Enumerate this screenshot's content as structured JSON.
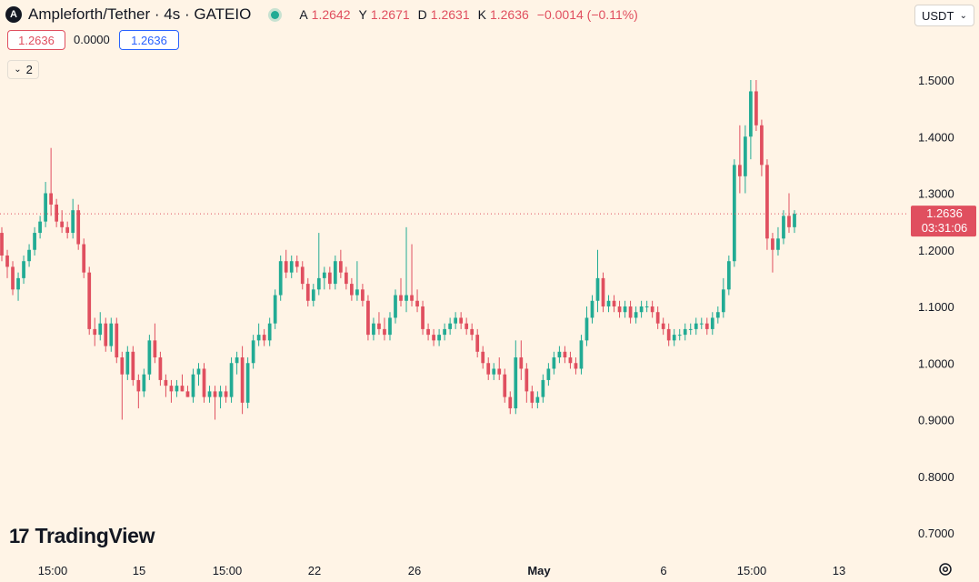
{
  "header": {
    "coin_letter": "A",
    "symbol": "Ampleforth/Tether · 4s · GATEIO",
    "ohlc": [
      {
        "key": "A",
        "value": "1.2642"
      },
      {
        "key": "Y",
        "value": "1.2671"
      },
      {
        "key": "D",
        "value": "1.2631"
      },
      {
        "key": "K",
        "value": "1.2636"
      }
    ],
    "change": "−0.0014 (−0.11%)",
    "currency": "USDT"
  },
  "quote": {
    "sell": "1.2636",
    "spread": "0.0000",
    "buy": "1.2636"
  },
  "collapse_count": "2",
  "branding": "TradingView",
  "colors": {
    "up": "#22ab94",
    "down": "#e04f5f",
    "background": "#fff4e6",
    "accent": "#2962ff"
  },
  "chart_data": {
    "type": "candlestick",
    "y_ticks": [
      "1.5000",
      "1.4000",
      "1.3000",
      "1.2000",
      "1.1000",
      "1.0000",
      "0.9000",
      "0.8000",
      "0.7000"
    ],
    "x_ticks": [
      "15:00",
      "15",
      "15:00",
      "22",
      "26",
      "May",
      "6",
      "15:00",
      "13"
    ],
    "ylim": [
      0.68,
      1.52
    ],
    "last_price": "1.2636",
    "countdown": "03:31:06",
    "candles": [
      [
        1.23,
        1.24,
        1.18,
        1.19
      ],
      [
        1.19,
        1.2,
        1.15,
        1.17
      ],
      [
        1.17,
        1.18,
        1.12,
        1.13
      ],
      [
        1.13,
        1.16,
        1.11,
        1.15
      ],
      [
        1.15,
        1.19,
        1.14,
        1.18
      ],
      [
        1.18,
        1.21,
        1.17,
        1.2
      ],
      [
        1.2,
        1.24,
        1.19,
        1.23
      ],
      [
        1.23,
        1.26,
        1.22,
        1.25
      ],
      [
        1.25,
        1.32,
        1.24,
        1.3
      ],
      [
        1.3,
        1.38,
        1.26,
        1.28
      ],
      [
        1.28,
        1.29,
        1.24,
        1.25
      ],
      [
        1.25,
        1.27,
        1.23,
        1.24
      ],
      [
        1.24,
        1.25,
        1.22,
        1.23
      ],
      [
        1.23,
        1.29,
        1.22,
        1.27
      ],
      [
        1.27,
        1.28,
        1.2,
        1.21
      ],
      [
        1.21,
        1.22,
        1.15,
        1.16
      ],
      [
        1.16,
        1.17,
        1.05,
        1.06
      ],
      [
        1.06,
        1.08,
        1.03,
        1.05
      ],
      [
        1.05,
        1.09,
        1.04,
        1.07
      ],
      [
        1.07,
        1.08,
        1.02,
        1.03
      ],
      [
        1.03,
        1.08,
        1.02,
        1.07
      ],
      [
        1.07,
        1.08,
        1.0,
        1.01
      ],
      [
        1.01,
        1.02,
        0.9,
        0.98
      ],
      [
        0.98,
        1.03,
        0.97,
        1.02
      ],
      [
        1.02,
        1.03,
        0.96,
        0.97
      ],
      [
        0.97,
        0.98,
        0.92,
        0.95
      ],
      [
        0.95,
        0.99,
        0.94,
        0.98
      ],
      [
        0.98,
        1.05,
        0.97,
        1.04
      ],
      [
        1.04,
        1.07,
        1.0,
        1.01
      ],
      [
        1.01,
        1.02,
        0.96,
        0.97
      ],
      [
        0.97,
        0.98,
        0.94,
        0.96
      ],
      [
        0.96,
        0.97,
        0.93,
        0.95
      ],
      [
        0.95,
        0.97,
        0.94,
        0.96
      ],
      [
        0.96,
        0.98,
        0.95,
        0.95
      ],
      [
        0.95,
        0.96,
        0.94,
        0.94
      ],
      [
        0.94,
        0.99,
        0.93,
        0.98
      ],
      [
        0.98,
        1.0,
        0.96,
        0.99
      ],
      [
        0.99,
        1.0,
        0.93,
        0.94
      ],
      [
        0.94,
        0.96,
        0.93,
        0.95
      ],
      [
        0.95,
        0.96,
        0.9,
        0.94
      ],
      [
        0.94,
        0.96,
        0.92,
        0.95
      ],
      [
        0.95,
        0.96,
        0.93,
        0.94
      ],
      [
        0.94,
        1.01,
        0.93,
        1.0
      ],
      [
        1.0,
        1.02,
        0.98,
        1.01
      ],
      [
        1.01,
        1.03,
        0.91,
        0.93
      ],
      [
        0.93,
        1.01,
        0.92,
        1.0
      ],
      [
        1.0,
        1.05,
        0.99,
        1.04
      ],
      [
        1.04,
        1.07,
        1.03,
        1.05
      ],
      [
        1.05,
        1.06,
        1.03,
        1.04
      ],
      [
        1.04,
        1.08,
        1.03,
        1.07
      ],
      [
        1.07,
        1.13,
        1.06,
        1.12
      ],
      [
        1.12,
        1.19,
        1.11,
        1.18
      ],
      [
        1.18,
        1.2,
        1.15,
        1.16
      ],
      [
        1.16,
        1.19,
        1.15,
        1.18
      ],
      [
        1.18,
        1.19,
        1.16,
        1.17
      ],
      [
        1.17,
        1.18,
        1.13,
        1.14
      ],
      [
        1.14,
        1.15,
        1.1,
        1.11
      ],
      [
        1.11,
        1.14,
        1.1,
        1.13
      ],
      [
        1.13,
        1.23,
        1.12,
        1.15
      ],
      [
        1.15,
        1.17,
        1.13,
        1.16
      ],
      [
        1.16,
        1.17,
        1.13,
        1.14
      ],
      [
        1.14,
        1.19,
        1.13,
        1.18
      ],
      [
        1.18,
        1.2,
        1.15,
        1.16
      ],
      [
        1.16,
        1.17,
        1.13,
        1.14
      ],
      [
        1.14,
        1.15,
        1.11,
        1.12
      ],
      [
        1.12,
        1.18,
        1.11,
        1.13
      ],
      [
        1.13,
        1.14,
        1.1,
        1.11
      ],
      [
        1.11,
        1.12,
        1.04,
        1.05
      ],
      [
        1.05,
        1.08,
        1.04,
        1.07
      ],
      [
        1.07,
        1.09,
        1.05,
        1.06
      ],
      [
        1.06,
        1.08,
        1.04,
        1.05
      ],
      [
        1.05,
        1.09,
        1.04,
        1.08
      ],
      [
        1.08,
        1.13,
        1.07,
        1.12
      ],
      [
        1.12,
        1.15,
        1.1,
        1.11
      ],
      [
        1.11,
        1.24,
        1.09,
        1.12
      ],
      [
        1.12,
        1.21,
        1.1,
        1.11
      ],
      [
        1.11,
        1.13,
        1.09,
        1.1
      ],
      [
        1.1,
        1.11,
        1.05,
        1.06
      ],
      [
        1.06,
        1.07,
        1.04,
        1.05
      ],
      [
        1.05,
        1.06,
        1.03,
        1.04
      ],
      [
        1.04,
        1.06,
        1.03,
        1.05
      ],
      [
        1.05,
        1.07,
        1.04,
        1.06
      ],
      [
        1.06,
        1.08,
        1.05,
        1.07
      ],
      [
        1.07,
        1.09,
        1.06,
        1.08
      ],
      [
        1.08,
        1.09,
        1.06,
        1.07
      ],
      [
        1.07,
        1.08,
        1.05,
        1.06
      ],
      [
        1.06,
        1.07,
        1.04,
        1.05
      ],
      [
        1.05,
        1.06,
        1.01,
        1.02
      ],
      [
        1.02,
        1.03,
        0.99,
        1.0
      ],
      [
        1.0,
        1.01,
        0.97,
        0.98
      ],
      [
        0.98,
        1.0,
        0.97,
        0.99
      ],
      [
        0.99,
        1.01,
        0.97,
        0.98
      ],
      [
        0.98,
        0.99,
        0.93,
        0.94
      ],
      [
        0.94,
        0.95,
        0.91,
        0.92
      ],
      [
        0.92,
        1.04,
        0.91,
        1.01
      ],
      [
        1.01,
        1.04,
        0.97,
        0.99
      ],
      [
        0.99,
        1.0,
        0.93,
        0.95
      ],
      [
        0.95,
        0.96,
        0.92,
        0.93
      ],
      [
        0.93,
        0.95,
        0.92,
        0.94
      ],
      [
        0.94,
        0.98,
        0.93,
        0.97
      ],
      [
        0.97,
        1.0,
        0.96,
        0.99
      ],
      [
        0.99,
        1.02,
        0.98,
        1.01
      ],
      [
        1.01,
        1.03,
        1.0,
        1.02
      ],
      [
        1.02,
        1.03,
        1.0,
        1.01
      ],
      [
        1.01,
        1.02,
        0.99,
        1.0
      ],
      [
        1.0,
        1.01,
        0.98,
        0.99
      ],
      [
        0.99,
        1.05,
        0.98,
        1.04
      ],
      [
        1.04,
        1.1,
        1.03,
        1.08
      ],
      [
        1.08,
        1.12,
        1.07,
        1.11
      ],
      [
        1.11,
        1.2,
        1.09,
        1.15
      ],
      [
        1.15,
        1.16,
        1.09,
        1.1
      ],
      [
        1.1,
        1.12,
        1.09,
        1.11
      ],
      [
        1.11,
        1.12,
        1.09,
        1.1
      ],
      [
        1.1,
        1.11,
        1.08,
        1.09
      ],
      [
        1.09,
        1.11,
        1.08,
        1.1
      ],
      [
        1.1,
        1.11,
        1.07,
        1.08
      ],
      [
        1.08,
        1.1,
        1.07,
        1.09
      ],
      [
        1.09,
        1.11,
        1.08,
        1.1
      ],
      [
        1.1,
        1.11,
        1.09,
        1.1
      ],
      [
        1.1,
        1.11,
        1.08,
        1.09
      ],
      [
        1.09,
        1.1,
        1.06,
        1.07
      ],
      [
        1.07,
        1.08,
        1.05,
        1.06
      ],
      [
        1.06,
        1.07,
        1.03,
        1.04
      ],
      [
        1.04,
        1.06,
        1.03,
        1.05
      ],
      [
        1.05,
        1.06,
        1.04,
        1.05
      ],
      [
        1.05,
        1.07,
        1.04,
        1.06
      ],
      [
        1.06,
        1.07,
        1.05,
        1.06
      ],
      [
        1.06,
        1.08,
        1.05,
        1.07
      ],
      [
        1.07,
        1.08,
        1.06,
        1.07
      ],
      [
        1.07,
        1.08,
        1.05,
        1.06
      ],
      [
        1.06,
        1.09,
        1.05,
        1.08
      ],
      [
        1.08,
        1.1,
        1.07,
        1.09
      ],
      [
        1.09,
        1.15,
        1.08,
        1.13
      ],
      [
        1.13,
        1.19,
        1.12,
        1.18
      ],
      [
        1.18,
        1.36,
        1.17,
        1.35
      ],
      [
        1.35,
        1.42,
        1.3,
        1.33
      ],
      [
        1.33,
        1.42,
        1.3,
        1.4
      ],
      [
        1.4,
        1.5,
        1.36,
        1.48
      ],
      [
        1.48,
        1.5,
        1.41,
        1.42
      ],
      [
        1.42,
        1.43,
        1.33,
        1.35
      ],
      [
        1.35,
        1.36,
        1.2,
        1.22
      ],
      [
        1.22,
        1.23,
        1.16,
        1.2
      ],
      [
        1.2,
        1.24,
        1.19,
        1.22
      ],
      [
        1.22,
        1.27,
        1.21,
        1.26
      ],
      [
        1.26,
        1.3,
        1.23,
        1.24
      ],
      [
        1.24,
        1.27,
        1.23,
        1.2636
      ]
    ]
  }
}
